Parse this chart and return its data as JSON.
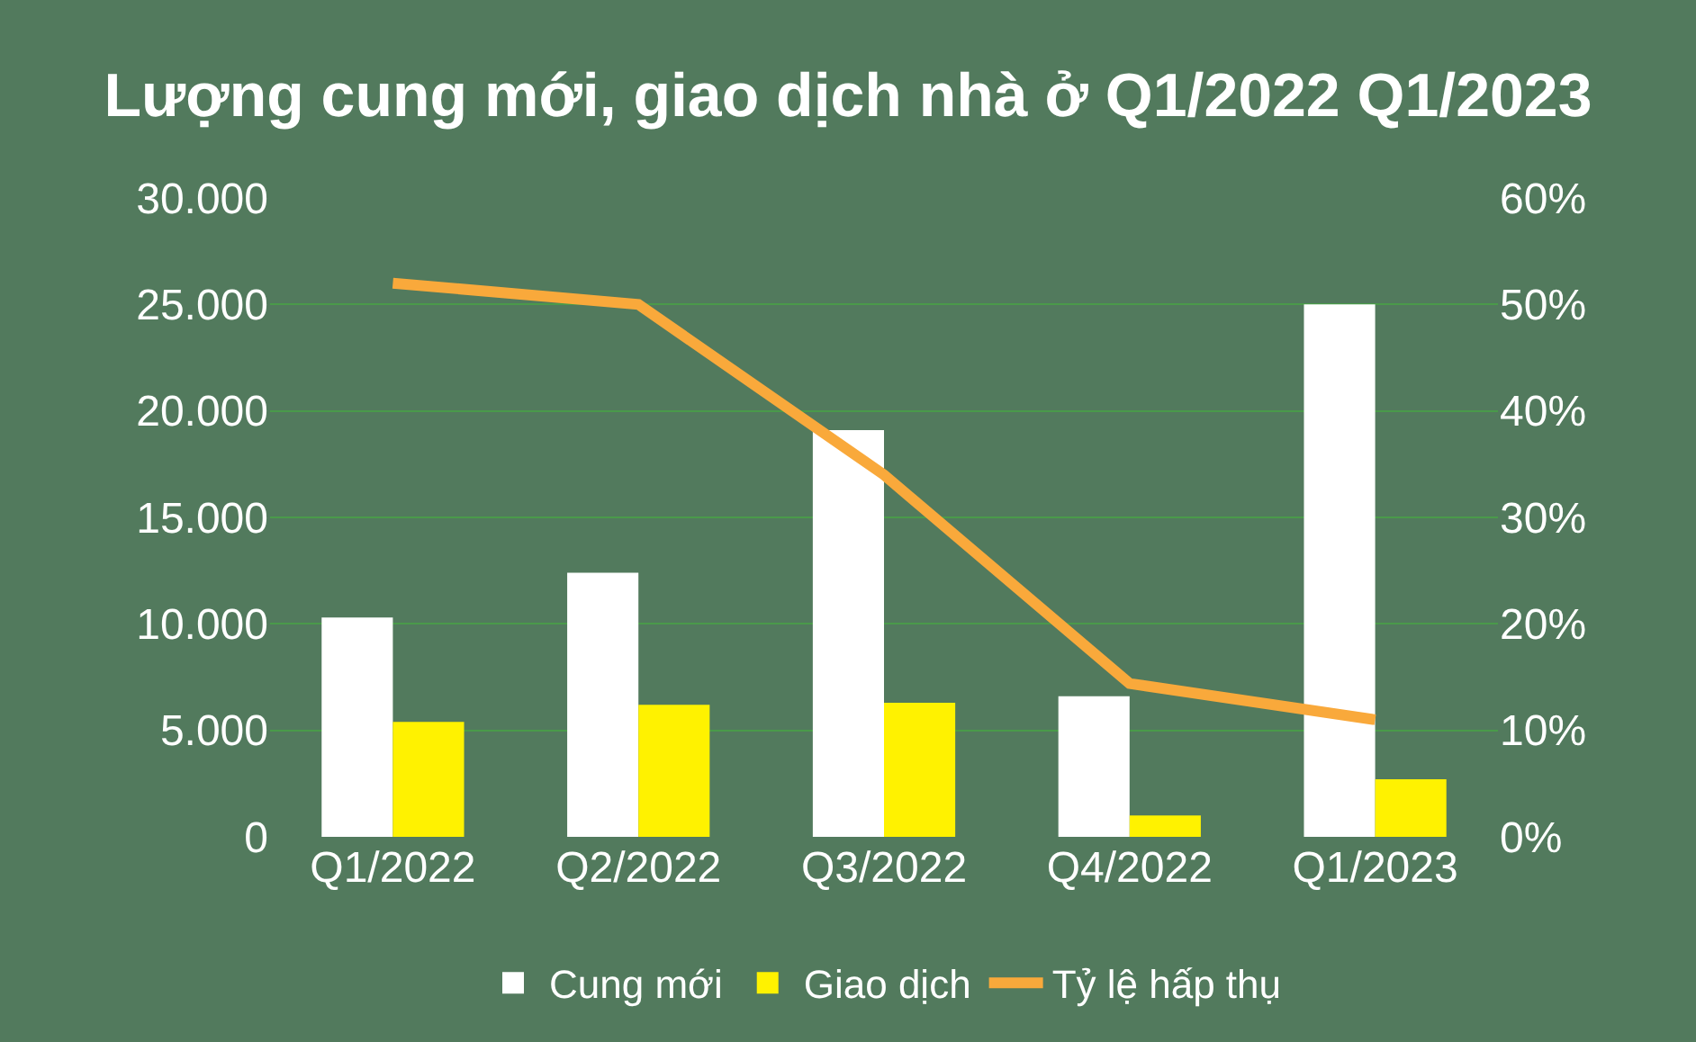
{
  "chart_data": {
    "type": "bar",
    "title": "Lượng cung mới, giao dịch nhà ở Q1/2022 Q1/2023",
    "categories": [
      "Q1/2022",
      "Q2/2022",
      "Q3/2022",
      "Q4/2022",
      "Q1/2023"
    ],
    "series": [
      {
        "name": "Cung mới",
        "color": "#ffffff",
        "values": [
          10300,
          12400,
          19100,
          6600,
          25000
        ]
      },
      {
        "name": "Giao dịch",
        "color": "#fff200",
        "values": [
          5400,
          6200,
          6300,
          1000,
          2700
        ]
      },
      {
        "name": "Tỷ lệ hấp thụ",
        "type": "line",
        "axis": "y2",
        "color": "#f9a93b",
        "values": [
          52,
          50,
          34,
          14.4,
          11
        ]
      }
    ],
    "ylim": [
      0,
      30000
    ],
    "yticks": [
      0,
      {
        "value": 5000,
        "label": "5.000"
      },
      {
        "value": 10000,
        "label": "10.000"
      },
      {
        "value": 15000,
        "label": "15.000"
      },
      {
        "value": 20000,
        "label": "20.000"
      },
      {
        "value": 25000,
        "label": "25.000"
      },
      {
        "value": 30000,
        "label": "30.000"
      }
    ],
    "y2lim": [
      0,
      60
    ],
    "y2ticks": [
      {
        "value": 0,
        "label": "0%"
      },
      {
        "value": 10,
        "label": "10%"
      },
      {
        "value": 20,
        "label": "20%"
      },
      {
        "value": 30,
        "label": "30%"
      },
      {
        "value": 40,
        "label": "40%"
      },
      {
        "value": 50,
        "label": "50%"
      },
      {
        "value": 60,
        "label": "60%"
      }
    ],
    "grid": "y",
    "legend": "bottom",
    "marker": "none",
    "line_style": "solid"
  }
}
